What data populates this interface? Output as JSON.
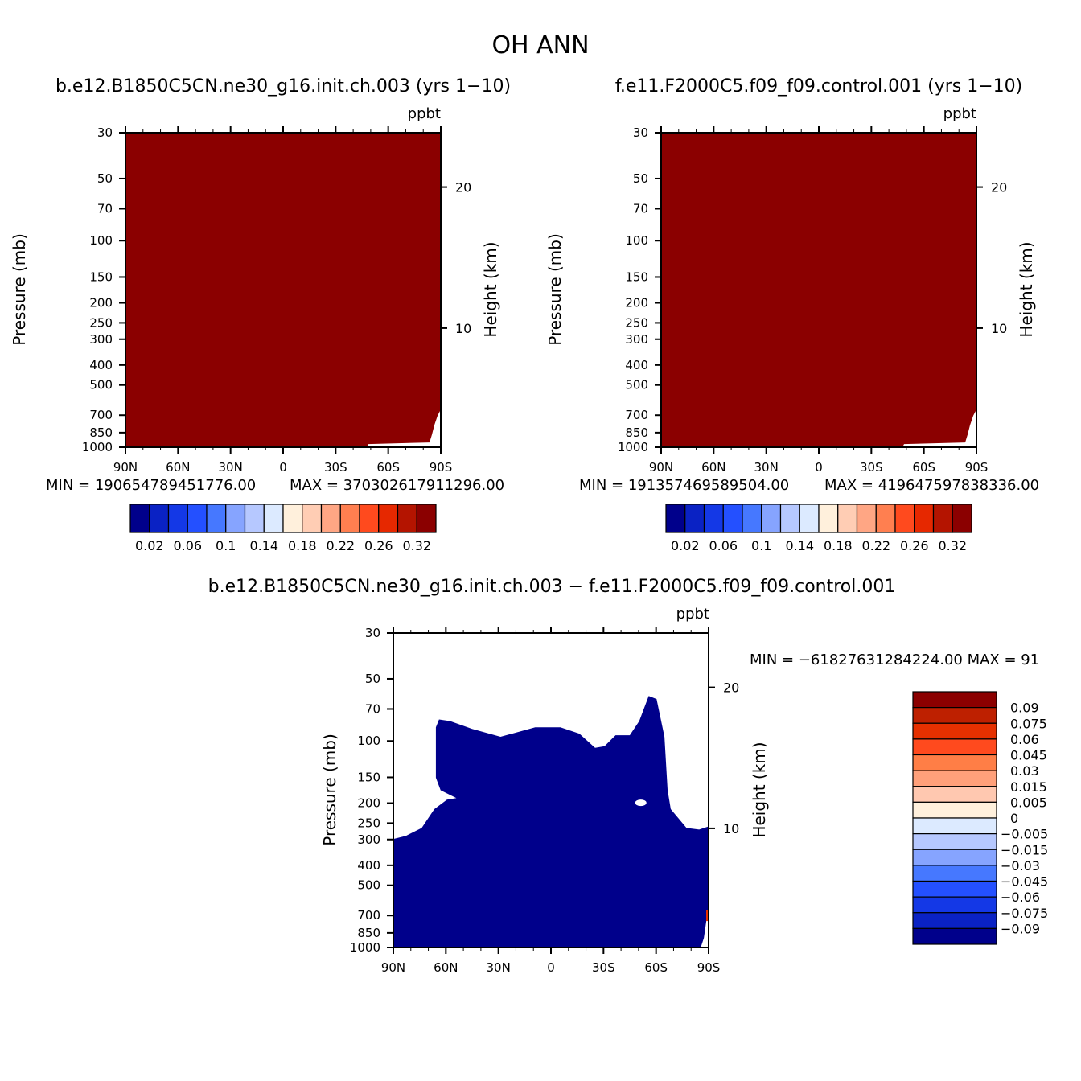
{
  "main_title": "OH ANN",
  "chart_data": [
    {
      "type": "heatmap",
      "title": "b.e12.B1850C5CN.ne30_g16.init.ch.003 (yrs 1−10)",
      "units": "ppbt",
      "ylabel": "Pressure (mb)",
      "ylabel_right": "Height (km)",
      "x_ticks": [
        "90N",
        "60N",
        "30N",
        "0",
        "30S",
        "60S",
        "90S"
      ],
      "y_ticks": [
        "30",
        "50",
        "70",
        "100",
        "150",
        "200",
        "250",
        "300",
        "400",
        "500",
        "700",
        "850",
        "1000"
      ],
      "y_ticks_right": [
        "20",
        "10"
      ],
      "min_text": "MIN = 19065478945177​6.00",
      "max_text": "MAX = 370302617911296.00",
      "field_color": "#8b0000",
      "colorbar": {
        "orientation": "horizontal",
        "colors": [
          "#00008b",
          "#0a22c4",
          "#1438e6",
          "#2450ff",
          "#4678ff",
          "#86a4ff",
          "#b6c8ff",
          "#dceaff",
          "#fff0dc",
          "#ffcdb4",
          "#ffa684",
          "#ff7f50",
          "#ff4a1e",
          "#e62800",
          "#b41400",
          "#8b0000"
        ],
        "labels": [
          "0.02",
          "0.06",
          "0.1",
          "0.14",
          "0.18",
          "0.22",
          "0.26",
          "0.32"
        ]
      }
    },
    {
      "type": "heatmap",
      "title": "f.e11.F2000C5.f09_f09.control.001 (yrs 1−10)",
      "units": "ppbt",
      "ylabel": "Pressure (mb)",
      "ylabel_right": "Height (km)",
      "x_ticks": [
        "90N",
        "60N",
        "30N",
        "0",
        "30S",
        "60S",
        "90S"
      ],
      "y_ticks": [
        "30",
        "50",
        "70",
        "100",
        "150",
        "200",
        "250",
        "300",
        "400",
        "500",
        "700",
        "850",
        "1000"
      ],
      "y_ticks_right": [
        "20",
        "10"
      ],
      "min_text": "MIN = 191357469589504.00",
      "max_text": "MAX = 419647597838336.00",
      "field_color": "#8b0000",
      "colorbar": {
        "orientation": "horizontal",
        "colors": [
          "#00008b",
          "#0a22c4",
          "#1438e6",
          "#2450ff",
          "#4678ff",
          "#86a4ff",
          "#b6c8ff",
          "#dceaff",
          "#fff0dc",
          "#ffcdb4",
          "#ffa684",
          "#ff7f50",
          "#ff4a1e",
          "#e62800",
          "#b41400",
          "#8b0000"
        ],
        "labels": [
          "0.02",
          "0.06",
          "0.1",
          "0.14",
          "0.18",
          "0.22",
          "0.26",
          "0.32"
        ]
      }
    },
    {
      "type": "heatmap",
      "title": "b.e12.B1850C5CN.ne30_g16.init.ch.003 − f.e11.F2000C5.f09_f09.control.001",
      "units": "ppbt",
      "ylabel": "Pressure (mb)",
      "ylabel_right": "Height (km)",
      "x_ticks": [
        "90N",
        "60N",
        "30N",
        "0",
        "30S",
        "60S",
        "90S"
      ],
      "y_ticks": [
        "30",
        "50",
        "70",
        "100",
        "150",
        "200",
        "250",
        "300",
        "400",
        "500",
        "700",
        "850",
        "1000"
      ],
      "y_ticks_right": [
        "20",
        "10"
      ],
      "minmax_text": "MIN = −61827631284224.00   MAX = 91",
      "field_color": "#00008b",
      "colorbar": {
        "orientation": "vertical",
        "colors": [
          "#8b0000",
          "#be2000",
          "#e63000",
          "#ff4a1e",
          "#ff7e46",
          "#ffa07a",
          "#ffc8b0",
          "#fff0dc",
          "#dceaff",
          "#b6c8ff",
          "#86a4ff",
          "#4678ff",
          "#2450ff",
          "#1438e6",
          "#0a22c4",
          "#00008b"
        ],
        "labels": [
          "0.09",
          "0.075",
          "0.06",
          "0.045",
          "0.03",
          "0.015",
          "0.005",
          "0",
          "−0.005",
          "−0.015",
          "−0.03",
          "−0.045",
          "−0.06",
          "−0.075",
          "−0.09"
        ]
      }
    }
  ]
}
